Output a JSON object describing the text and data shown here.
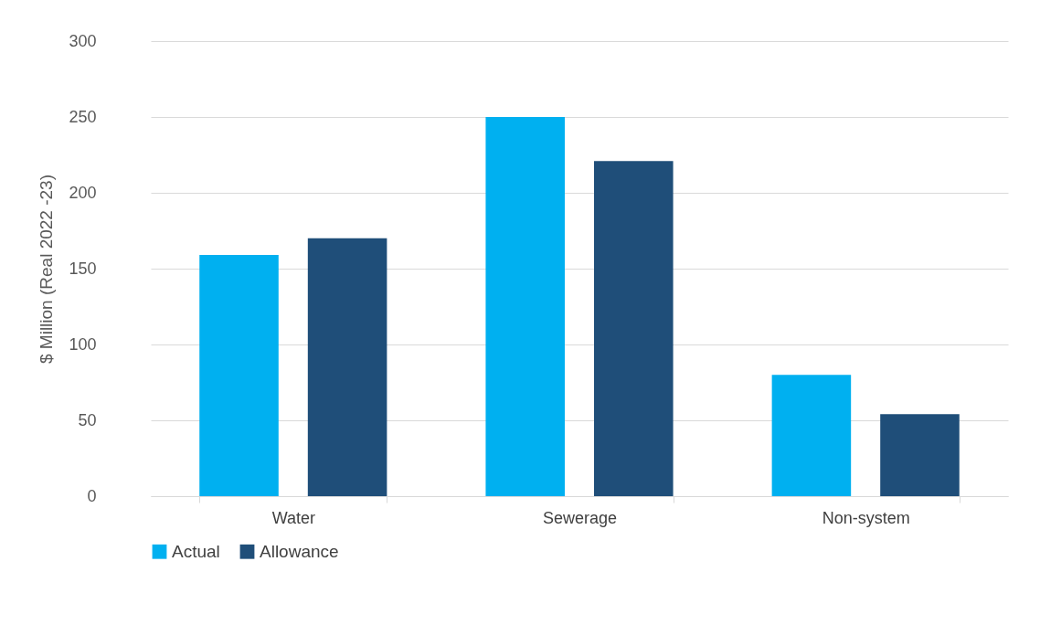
{
  "chart_data": {
    "type": "bar",
    "ylabel": "$ Million (Real 2022 -23)",
    "categories": [
      "Water",
      "Sewerage",
      "Non-system"
    ],
    "series": [
      {
        "name": "Actual",
        "color": "#00b0f0",
        "values": [
          159,
          250,
          80
        ]
      },
      {
        "name": "Allowance",
        "color": "#1f4e79",
        "values": [
          170,
          221,
          54
        ]
      }
    ],
    "ylim": [
      0,
      300
    ],
    "yticks": [
      0,
      50,
      100,
      150,
      200,
      250,
      300
    ],
    "grid": "y",
    "legend": "bottom"
  }
}
